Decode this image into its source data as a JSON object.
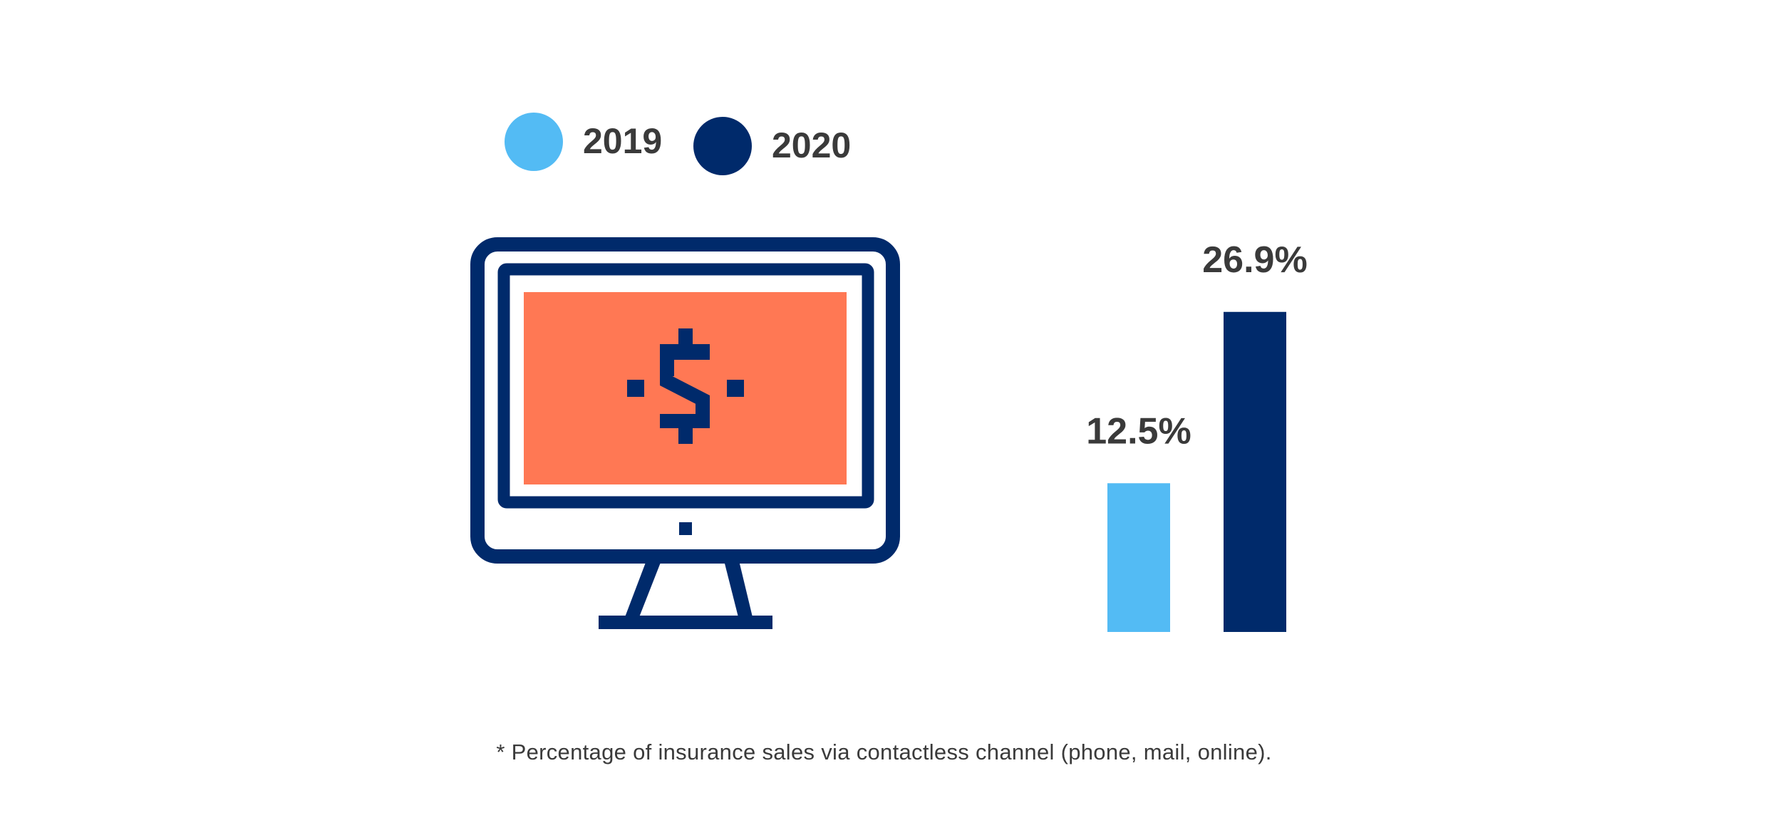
{
  "colors": {
    "light_blue": "#53BBF4",
    "navy": "#002A6B",
    "coral": "#FF7854",
    "text": "#3a3a3a"
  },
  "legend": [
    {
      "label": "2019",
      "color": "#53BBF4"
    },
    {
      "label": "2020",
      "color": "#002A6B"
    }
  ],
  "icon": "monitor-dollar-icon",
  "chart_data": {
    "type": "bar",
    "categories": [
      "2019",
      "2020"
    ],
    "values": [
      12.5,
      26.9
    ],
    "data_labels": [
      "12.5%",
      "26.9%"
    ],
    "colors": [
      "#53BBF4",
      "#002A6B"
    ],
    "ylim": [
      0,
      30
    ],
    "grid": false,
    "legend_position": "top-left"
  },
  "footnote": "* Percentage of insurance sales via contactless channel (phone, mail, online)."
}
